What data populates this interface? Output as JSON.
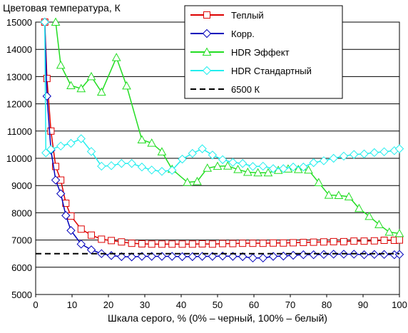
{
  "chart_data": {
    "type": "line",
    "title": "",
    "ylabel": "Цветовая температура, К",
    "xlabel": "Шкала серого, % (0% – черный, 100% – белый)",
    "xlim": [
      0,
      100
    ],
    "ylim": [
      5000,
      15000
    ],
    "x_ticks": [
      0,
      10,
      20,
      30,
      40,
      50,
      60,
      70,
      80,
      90,
      100
    ],
    "y_ticks": [
      5000,
      6000,
      7000,
      8000,
      9000,
      10000,
      11000,
      12000,
      13000,
      14000,
      15000
    ],
    "grid": true,
    "legend_position": "top-right",
    "series": [
      {
        "name": "Теплый",
        "color": "#dd0000",
        "marker": "square",
        "points": [
          [
            2.5,
            15000
          ],
          [
            3.1,
            12930
          ],
          [
            4.2,
            11000
          ],
          [
            5.5,
            9700
          ],
          [
            6.9,
            9200
          ],
          [
            8.3,
            8350
          ],
          [
            9.7,
            7880
          ],
          [
            12.5,
            7400
          ],
          [
            15.3,
            7180
          ],
          [
            18.1,
            7030
          ],
          [
            20.8,
            6980
          ],
          [
            23.6,
            6930
          ],
          [
            26.4,
            6880
          ],
          [
            29.2,
            6860
          ],
          [
            31.9,
            6850
          ],
          [
            34.7,
            6850
          ],
          [
            37.5,
            6850
          ],
          [
            40.3,
            6850
          ],
          [
            43.1,
            6850
          ],
          [
            45.8,
            6860
          ],
          [
            48.6,
            6850
          ],
          [
            51.4,
            6870
          ],
          [
            54.2,
            6870
          ],
          [
            56.9,
            6880
          ],
          [
            59.7,
            6880
          ],
          [
            62.5,
            6880
          ],
          [
            65.3,
            6890
          ],
          [
            68.1,
            6890
          ],
          [
            70.8,
            6900
          ],
          [
            73.6,
            6910
          ],
          [
            76.4,
            6920
          ],
          [
            79.2,
            6930
          ],
          [
            81.9,
            6940
          ],
          [
            84.7,
            6940
          ],
          [
            87.5,
            6960
          ],
          [
            90.3,
            6960
          ],
          [
            93.1,
            6970
          ],
          [
            95.8,
            6990
          ],
          [
            98.6,
            6990
          ],
          [
            100,
            7000
          ]
        ]
      },
      {
        "name": "Корр.",
        "color": "#0000bb",
        "marker": "diamond",
        "points": [
          [
            2.5,
            15000
          ],
          [
            3.1,
            12280
          ],
          [
            4.2,
            10300
          ],
          [
            5.5,
            9200
          ],
          [
            6.9,
            8700
          ],
          [
            8.3,
            7900
          ],
          [
            9.7,
            7350
          ],
          [
            12.5,
            6850
          ],
          [
            15.3,
            6640
          ],
          [
            18.1,
            6500
          ],
          [
            20.8,
            6430
          ],
          [
            23.6,
            6390
          ],
          [
            26.4,
            6380
          ],
          [
            29.2,
            6400
          ],
          [
            31.9,
            6400
          ],
          [
            34.7,
            6400
          ],
          [
            37.5,
            6400
          ],
          [
            40.3,
            6390
          ],
          [
            43.1,
            6390
          ],
          [
            45.8,
            6400
          ],
          [
            48.6,
            6400
          ],
          [
            51.4,
            6410
          ],
          [
            54.2,
            6400
          ],
          [
            56.9,
            6390
          ],
          [
            59.7,
            6340
          ],
          [
            62.5,
            6340
          ],
          [
            65.3,
            6400
          ],
          [
            68.1,
            6410
          ],
          [
            70.8,
            6440
          ],
          [
            73.6,
            6460
          ],
          [
            76.4,
            6460
          ],
          [
            79.2,
            6470
          ],
          [
            81.9,
            6480
          ],
          [
            84.7,
            6480
          ],
          [
            87.5,
            6480
          ],
          [
            90.3,
            6460
          ],
          [
            93.1,
            6470
          ],
          [
            95.8,
            6470
          ],
          [
            98.6,
            6460
          ],
          [
            100,
            6470
          ]
        ]
      },
      {
        "name": "HDR Эффект",
        "color": "#22dd22",
        "marker": "triangle",
        "points": [
          [
            5.5,
            15000
          ],
          [
            6.9,
            13420
          ],
          [
            9.7,
            12670
          ],
          [
            12.5,
            12560
          ],
          [
            15.3,
            13000
          ],
          [
            18.1,
            12430
          ],
          [
            22.2,
            13700
          ],
          [
            25.0,
            12660
          ],
          [
            29.2,
            10680
          ],
          [
            31.9,
            10560
          ],
          [
            34.7,
            10240
          ],
          [
            37.5,
            9600
          ],
          [
            41.7,
            9120
          ],
          [
            44.4,
            9150
          ],
          [
            47.2,
            9640
          ],
          [
            50.0,
            9710
          ],
          [
            52.8,
            9720
          ],
          [
            55.6,
            9590
          ],
          [
            58.3,
            9490
          ],
          [
            61.1,
            9470
          ],
          [
            63.9,
            9470
          ],
          [
            66.7,
            9560
          ],
          [
            69.4,
            9610
          ],
          [
            72.2,
            9590
          ],
          [
            75.0,
            9570
          ],
          [
            77.8,
            9110
          ],
          [
            80.6,
            8650
          ],
          [
            83.3,
            8640
          ],
          [
            86.1,
            8590
          ],
          [
            88.9,
            8160
          ],
          [
            91.7,
            7870
          ],
          [
            94.4,
            7570
          ],
          [
            97.2,
            7290
          ],
          [
            100,
            7240
          ]
        ]
      },
      {
        "name": "HDR Стандартный",
        "color": "#22eeee",
        "marker": "diamond",
        "points": [
          [
            2.5,
            15000
          ],
          [
            2.8,
            10200
          ],
          [
            4.2,
            10330
          ],
          [
            6.9,
            10450
          ],
          [
            9.7,
            10550
          ],
          [
            12.5,
            10720
          ],
          [
            15.3,
            10250
          ],
          [
            18.1,
            9710
          ],
          [
            20.8,
            9730
          ],
          [
            23.6,
            9810
          ],
          [
            26.4,
            9810
          ],
          [
            29.2,
            9680
          ],
          [
            31.9,
            9570
          ],
          [
            34.7,
            9520
          ],
          [
            37.5,
            9560
          ],
          [
            40.3,
            9970
          ],
          [
            43.1,
            10180
          ],
          [
            45.8,
            10350
          ],
          [
            48.6,
            10120
          ],
          [
            51.4,
            9950
          ],
          [
            54.2,
            9850
          ],
          [
            56.9,
            9810
          ],
          [
            59.7,
            9700
          ],
          [
            62.5,
            9710
          ],
          [
            65.3,
            9620
          ],
          [
            68.1,
            9620
          ],
          [
            70.8,
            9680
          ],
          [
            73.6,
            9680
          ],
          [
            76.4,
            9840
          ],
          [
            79.2,
            9910
          ],
          [
            81.9,
            10000
          ],
          [
            84.7,
            10080
          ],
          [
            87.5,
            10140
          ],
          [
            90.3,
            10160
          ],
          [
            93.1,
            10210
          ],
          [
            95.8,
            10240
          ],
          [
            98.6,
            10280
          ],
          [
            100,
            10350
          ]
        ]
      },
      {
        "name": "6500 К",
        "color": "#000000",
        "marker": "none",
        "dash": true,
        "points": [
          [
            0,
            6500
          ],
          [
            100,
            6500
          ]
        ]
      }
    ]
  }
}
